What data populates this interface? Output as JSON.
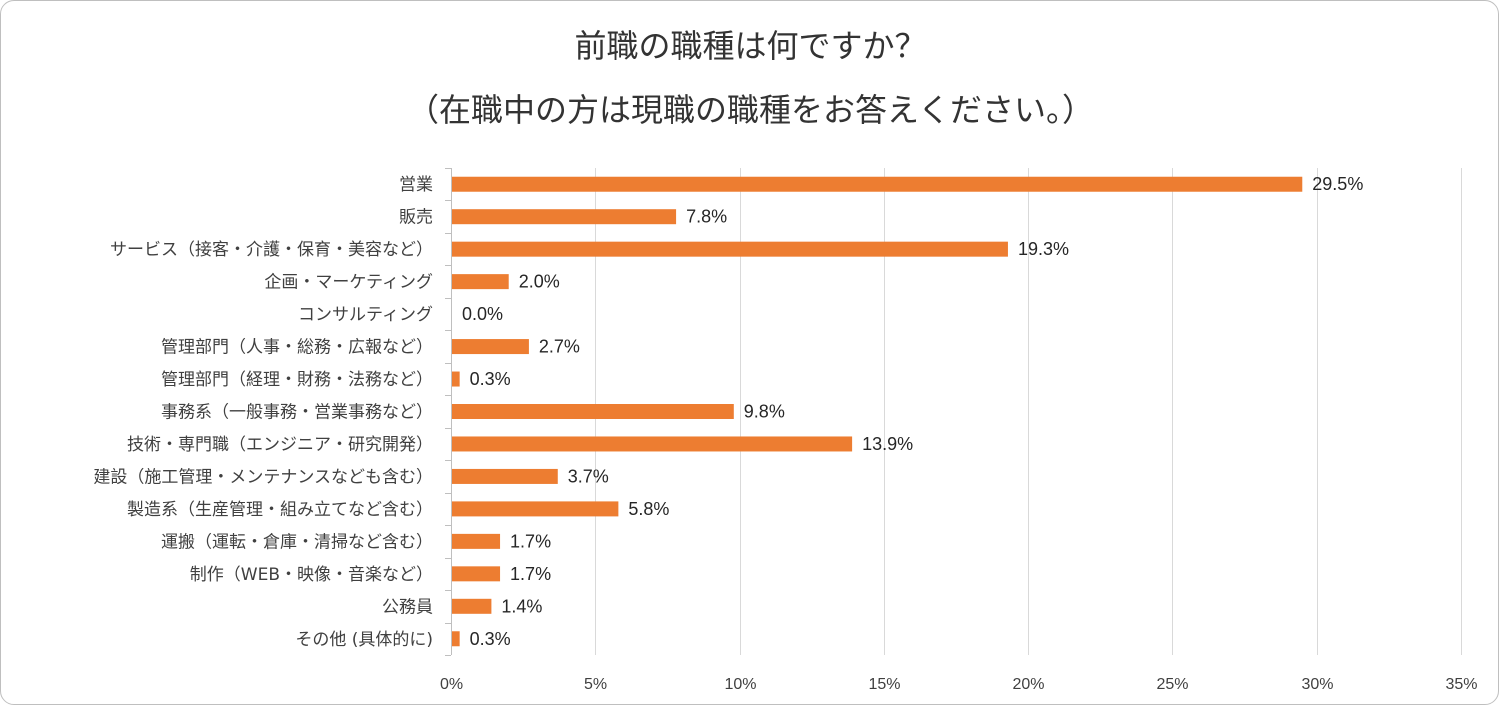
{
  "chart_data": {
    "type": "bar",
    "orientation": "horizontal",
    "title": "前職の職種は何ですか？",
    "subtitle": "（在職中の方は現職の職種をお答えください。）",
    "categories": [
      "営業",
      "販売",
      "サービス（接客・介護・保育・美容など）",
      "企画・マーケティング",
      "コンサルティング",
      "管理部門（人事・総務・広報など）",
      "管理部門（経理・財務・法務など）",
      "事務系（一般事務・営業事務など）",
      "技術・専門職（エンジニア・研究開発）",
      "建設（施工管理・メンテナンスなども含む）",
      "製造系（生産管理・組み立てなど含む）",
      "運搬（運転・倉庫・清掃など含む）",
      "制作（WEB・映像・音楽など）",
      "公務員",
      "その他 (具体的に)"
    ],
    "values": [
      29.5,
      7.8,
      19.3,
      2.0,
      0.0,
      2.7,
      0.3,
      9.8,
      13.9,
      3.7,
      5.8,
      1.7,
      1.7,
      1.4,
      0.3
    ],
    "value_labels": [
      "29.5%",
      "7.8%",
      "19.3%",
      "2.0%",
      "0.0%",
      "2.7%",
      "0.3%",
      "9.8%",
      "13.9%",
      "3.7%",
      "5.8%",
      "1.7%",
      "1.7%",
      "1.4%",
      "0.3%"
    ],
    "xlim": [
      0,
      35
    ],
    "xticks": [
      0,
      5,
      10,
      15,
      20,
      25,
      30,
      35
    ],
    "xtick_labels": [
      "0%",
      "5%",
      "10%",
      "15%",
      "20%",
      "25%",
      "30%",
      "35%"
    ],
    "grid": true,
    "legend": "none",
    "bar_color": "#ED7D31",
    "grid_color": "#D9D9D9"
  }
}
